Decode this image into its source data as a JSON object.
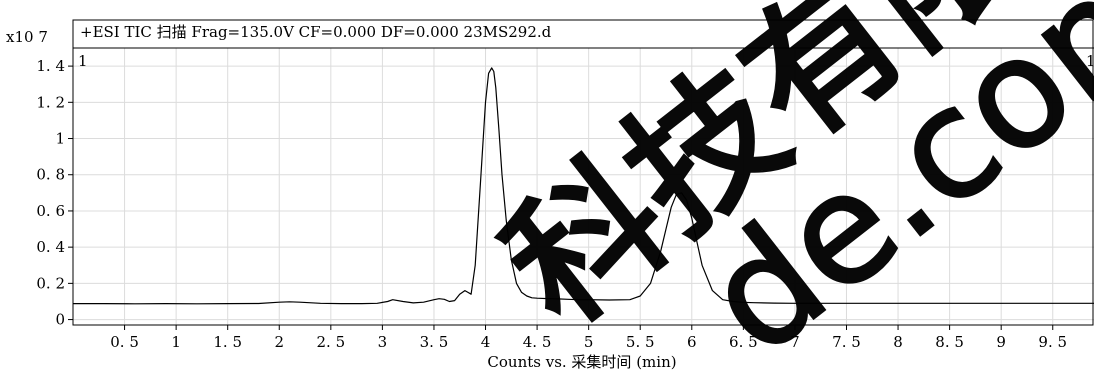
{
  "chart_data": {
    "type": "line",
    "title": "+ESI TIC 扫描 Frag=135.0V CF=0.000 DF=0.000 23MS292.d",
    "y_multiplier": "x10 7",
    "panel_index": "1",
    "panel_index_right": "1",
    "xlabel": "Counts vs.  采集时间  (min)",
    "ylabel": "",
    "xlim": [
      0,
      9.9
    ],
    "ylim": [
      -0.03,
      1.5
    ],
    "x_ticks": [
      0.5,
      1,
      1.5,
      2,
      2.5,
      3,
      3.5,
      4,
      4.5,
      5,
      5.5,
      6,
      6.5,
      7,
      7.5,
      8,
      8.5,
      9,
      9.5
    ],
    "x_tick_labels": [
      "0. 5",
      "1",
      "1. 5",
      "2",
      "2. 5",
      "3",
      "3. 5",
      "4",
      "4. 5",
      "5",
      "5. 5",
      "6",
      "6. 5",
      "7",
      "7. 5",
      "8",
      "8. 5",
      "9",
      "9. 5"
    ],
    "y_ticks": [
      0,
      0.2,
      0.4,
      0.6,
      0.8,
      1,
      1.2,
      1.4
    ],
    "y_tick_labels": [
      "0",
      "0. 2",
      "0. 4",
      "0. 6",
      "0. 8",
      "1",
      "1. 2",
      "1. 4"
    ],
    "grid": true,
    "line_color": "#000000",
    "grid_color": "#dcdcdc",
    "series": [
      {
        "x": [
          0,
          0.3,
          0.6,
          0.9,
          1.2,
          1.5,
          1.8,
          2.0,
          2.1,
          2.2,
          2.4,
          2.6,
          2.8,
          2.95,
          3.05,
          3.1,
          3.2,
          3.3,
          3.4,
          3.5,
          3.55,
          3.6,
          3.65,
          3.7,
          3.75,
          3.8,
          3.83,
          3.86,
          3.9,
          3.95,
          4.0,
          4.03,
          4.06,
          4.08,
          4.1,
          4.13,
          4.16,
          4.2,
          4.25,
          4.3,
          4.35,
          4.4,
          4.45,
          4.5,
          4.6,
          4.7,
          4.8,
          4.9,
          5.0,
          5.2,
          5.4,
          5.5,
          5.6,
          5.7,
          5.75,
          5.8,
          5.85,
          5.9,
          5.95,
          6.0,
          6.05,
          6.1,
          6.2,
          6.3,
          6.4,
          6.5,
          6.6,
          6.8,
          7.0,
          7.5,
          8.0,
          8.5,
          9.0,
          9.5,
          9.9
        ],
        "y": [
          0.088,
          0.088,
          0.087,
          0.088,
          0.087,
          0.088,
          0.089,
          0.096,
          0.098,
          0.096,
          0.09,
          0.088,
          0.088,
          0.09,
          0.1,
          0.11,
          0.1,
          0.092,
          0.096,
          0.11,
          0.115,
          0.112,
          0.1,
          0.105,
          0.14,
          0.16,
          0.15,
          0.14,
          0.3,
          0.75,
          1.2,
          1.36,
          1.39,
          1.37,
          1.28,
          1.05,
          0.8,
          0.55,
          0.33,
          0.2,
          0.15,
          0.13,
          0.12,
          0.118,
          0.116,
          0.114,
          0.112,
          0.11,
          0.11,
          0.108,
          0.11,
          0.13,
          0.2,
          0.38,
          0.5,
          0.62,
          0.69,
          0.7,
          0.66,
          0.56,
          0.43,
          0.3,
          0.16,
          0.11,
          0.1,
          0.095,
          0.093,
          0.091,
          0.09,
          0.09,
          0.09,
          0.09,
          0.09,
          0.09,
          0.09
        ]
      }
    ]
  },
  "watermark": {
    "text_main": "科技有限公",
    "text_domain": "de.com"
  }
}
